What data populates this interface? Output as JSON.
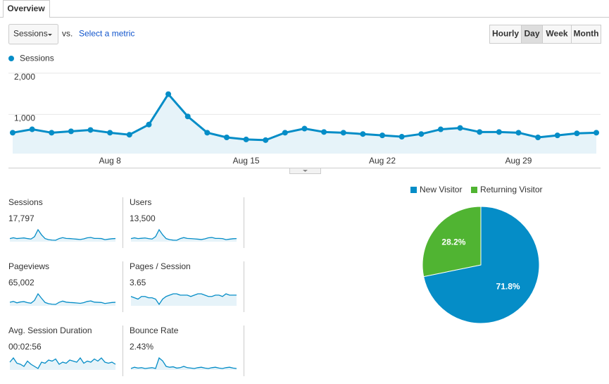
{
  "tabs": [
    "Overview"
  ],
  "toolbar": {
    "metric": "Sessions",
    "vs": "vs.",
    "select_metric": "Select a metric",
    "periods": [
      "Hourly",
      "Day",
      "Week",
      "Month"
    ],
    "active_period": 1
  },
  "chart_data": [
    {
      "type": "line",
      "categories": [
        null,
        null,
        null,
        null,
        null,
        "Aug 8",
        null,
        null,
        null,
        null,
        null,
        null,
        "Aug 15",
        null,
        null,
        null,
        null,
        null,
        null,
        "Aug 22",
        null,
        null,
        null,
        null,
        null,
        null,
        "Aug 29",
        null,
        null,
        null,
        null
      ],
      "series": [
        {
          "name": "Sessions",
          "color": "#058dc7",
          "values": [
            557,
            639,
            557,
            590,
            623,
            557,
            508,
            754,
            1492,
            951,
            557,
            443,
            393,
            377,
            557,
            656,
            574,
            557,
            525,
            492,
            459,
            525,
            639,
            672,
            574,
            574,
            557,
            443,
            492,
            541,
            557
          ]
        }
      ],
      "ylim": [
        50,
        2100
      ],
      "yticks": [
        {
          "value": 1000,
          "label": "1,000"
        },
        {
          "value": 2000,
          "label": "2,000"
        }
      ],
      "grid": true
    },
    {
      "type": "pie",
      "categories": [
        "New Visitor",
        "Returning Visitor"
      ],
      "values": [
        71.8,
        28.2
      ],
      "value_labels": [
        "71.8%",
        "28.2%"
      ],
      "colors": [
        "#058dc7",
        "#50b432"
      ]
    }
  ],
  "metrics": [
    {
      "label": "Sessions",
      "value": "17,797",
      "spark": [
        557,
        639,
        557,
        590,
        623,
        557,
        508,
        754,
        1492,
        951,
        557,
        443,
        393,
        377,
        557,
        656,
        574,
        557,
        525,
        492,
        459,
        525,
        639,
        672,
        574,
        574,
        557,
        443,
        492,
        541,
        557
      ]
    },
    {
      "label": "Users",
      "value": "13,500",
      "spark": [
        430,
        490,
        430,
        455,
        480,
        430,
        395,
        590,
        1150,
        740,
        430,
        345,
        305,
        295,
        430,
        510,
        445,
        430,
        410,
        385,
        355,
        410,
        495,
        520,
        445,
        445,
        430,
        345,
        385,
        420,
        430
      ]
    },
    {
      "label": "Pageviews",
      "value": "65,002",
      "spark": [
        2050,
        2300,
        1900,
        2150,
        2250,
        1950,
        1800,
        2600,
        4500,
        3200,
        2000,
        1650,
        1500,
        1450,
        2050,
        2400,
        2100,
        2000,
        1950,
        1850,
        1750,
        1950,
        2300,
        2450,
        2100,
        2050,
        2000,
        1700,
        1850,
        2000,
        2050
      ]
    },
    {
      "label": "Pages / Session",
      "value": "3.65",
      "spark": [
        3.6,
        3.5,
        3.4,
        3.6,
        3.6,
        3.5,
        3.5,
        3.4,
        3.0,
        3.4,
        3.6,
        3.7,
        3.8,
        3.8,
        3.7,
        3.7,
        3.7,
        3.6,
        3.7,
        3.8,
        3.8,
        3.7,
        3.6,
        3.6,
        3.7,
        3.7,
        3.6,
        3.8,
        3.7,
        3.7,
        3.7
      ]
    },
    {
      "label": "Avg. Session Duration",
      "value": "00:02:56",
      "spark": [
        170,
        190,
        165,
        160,
        150,
        175,
        160,
        150,
        140,
        170,
        165,
        180,
        175,
        185,
        160,
        170,
        165,
        180,
        175,
        170,
        190,
        165,
        175,
        170,
        185,
        175,
        190,
        170,
        165,
        170,
        160
      ]
    },
    {
      "label": "Bounce Rate",
      "value": "2.43%",
      "spark": [
        2.0,
        2.3,
        2.1,
        2.2,
        2.0,
        2.1,
        2.2,
        2.0,
        4.5,
        3.8,
        2.5,
        2.3,
        2.4,
        2.1,
        2.2,
        2.5,
        2.2,
        2.1,
        2.0,
        2.2,
        2.3,
        2.1,
        2.0,
        2.2,
        2.3,
        2.1,
        2.0,
        2.2,
        2.3,
        2.1,
        2.0
      ]
    }
  ]
}
